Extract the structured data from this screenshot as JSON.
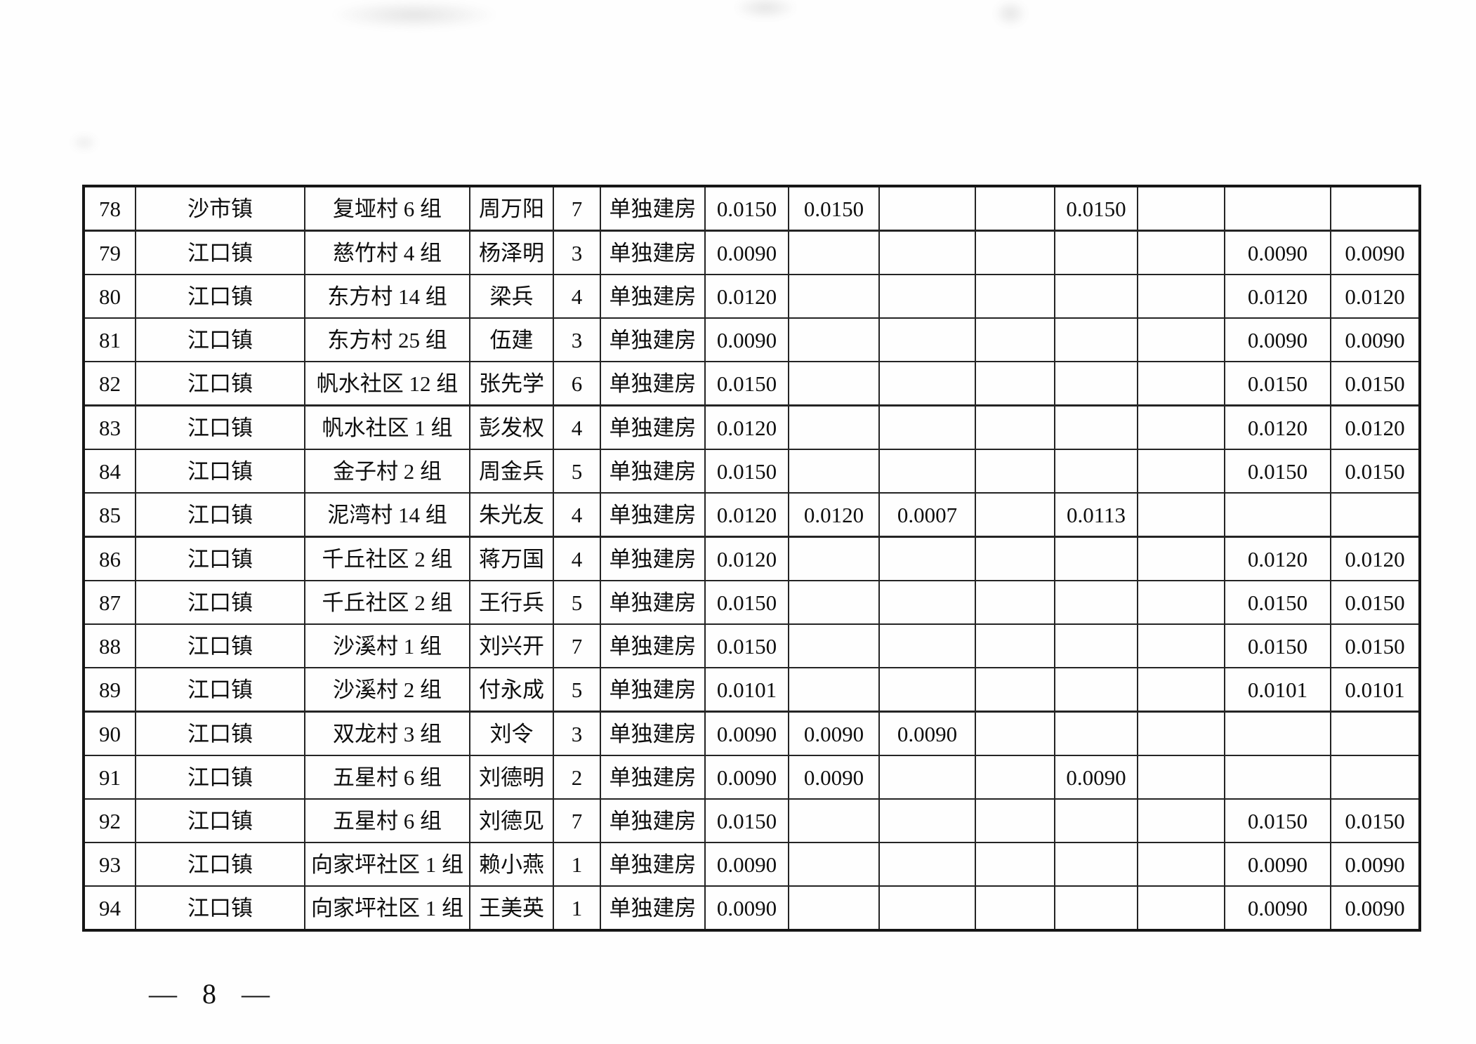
{
  "page": {
    "number_label": "— 8 —"
  },
  "table": {
    "rows": [
      [
        "78",
        "沙市镇",
        "复垭村 6 组",
        "周万阳",
        "7",
        "单独建房",
        "0.0150",
        "0.0150",
        "",
        "",
        "0.0150",
        "",
        "",
        ""
      ],
      [
        "79",
        "江口镇",
        "慈竹村 4 组",
        "杨泽明",
        "3",
        "单独建房",
        "0.0090",
        "",
        "",
        "",
        "",
        "",
        "0.0090",
        "0.0090"
      ],
      [
        "80",
        "江口镇",
        "东方村 14 组",
        "梁兵",
        "4",
        "单独建房",
        "0.0120",
        "",
        "",
        "",
        "",
        "",
        "0.0120",
        "0.0120"
      ],
      [
        "81",
        "江口镇",
        "东方村 25 组",
        "伍建",
        "3",
        "单独建房",
        "0.0090",
        "",
        "",
        "",
        "",
        "",
        "0.0090",
        "0.0090"
      ],
      [
        "82",
        "江口镇",
        "帆水社区 12 组",
        "张先学",
        "6",
        "单独建房",
        "0.0150",
        "",
        "",
        "",
        "",
        "",
        "0.0150",
        "0.0150"
      ],
      [
        "83",
        "江口镇",
        "帆水社区 1 组",
        "彭发权",
        "4",
        "单独建房",
        "0.0120",
        "",
        "",
        "",
        "",
        "",
        "0.0120",
        "0.0120"
      ],
      [
        "84",
        "江口镇",
        "金子村 2 组",
        "周金兵",
        "5",
        "单独建房",
        "0.0150",
        "",
        "",
        "",
        "",
        "",
        "0.0150",
        "0.0150"
      ],
      [
        "85",
        "江口镇",
        "泥湾村 14 组",
        "朱光友",
        "4",
        "单独建房",
        "0.0120",
        "0.0120",
        "0.0007",
        "",
        "0.0113",
        "",
        "",
        ""
      ],
      [
        "86",
        "江口镇",
        "千丘社区 2 组",
        "蒋万国",
        "4",
        "单独建房",
        "0.0120",
        "",
        "",
        "",
        "",
        "",
        "0.0120",
        "0.0120"
      ],
      [
        "87",
        "江口镇",
        "千丘社区 2 组",
        "王行兵",
        "5",
        "单独建房",
        "0.0150",
        "",
        "",
        "",
        "",
        "",
        "0.0150",
        "0.0150"
      ],
      [
        "88",
        "江口镇",
        "沙溪村 1 组",
        "刘兴开",
        "7",
        "单独建房",
        "0.0150",
        "",
        "",
        "",
        "",
        "",
        "0.0150",
        "0.0150"
      ],
      [
        "89",
        "江口镇",
        "沙溪村 2 组",
        "付永成",
        "5",
        "单独建房",
        "0.0101",
        "",
        "",
        "",
        "",
        "",
        "0.0101",
        "0.0101"
      ],
      [
        "90",
        "江口镇",
        "双龙村 3 组",
        "刘令",
        "3",
        "单独建房",
        "0.0090",
        "0.0090",
        "0.0090",
        "",
        "",
        "",
        "",
        ""
      ],
      [
        "91",
        "江口镇",
        "五星村 6 组",
        "刘德明",
        "2",
        "单独建房",
        "0.0090",
        "0.0090",
        "",
        "",
        "0.0090",
        "",
        "",
        ""
      ],
      [
        "92",
        "江口镇",
        "五星村 6 组",
        "刘德见",
        "7",
        "单独建房",
        "0.0150",
        "",
        "",
        "",
        "",
        "",
        "0.0150",
        "0.0150"
      ],
      [
        "93",
        "江口镇",
        "向家坪社区 1 组",
        "赖小燕",
        "1",
        "单独建房",
        "0.0090",
        "",
        "",
        "",
        "",
        "",
        "0.0090",
        "0.0090"
      ],
      [
        "94",
        "江口镇",
        "向家坪社区 1 组",
        "王美英",
        "1",
        "单独建房",
        "0.0090",
        "",
        "",
        "",
        "",
        "",
        "0.0090",
        "0.0090"
      ]
    ]
  }
}
